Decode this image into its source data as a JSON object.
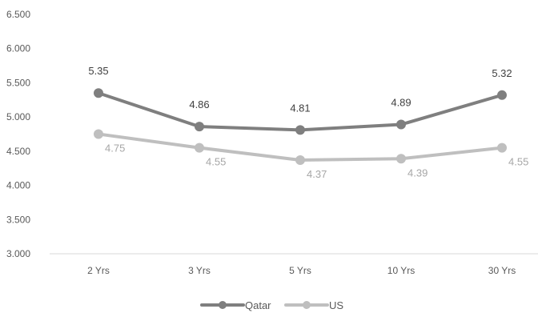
{
  "chart_data": {
    "type": "line",
    "title": "",
    "xlabel": "",
    "ylabel": "",
    "categories": [
      "2 Yrs",
      "3 Yrs",
      "5 Yrs",
      "10 Yrs",
      "30 Yrs"
    ],
    "ylim": [
      3.0,
      6.5
    ],
    "yticks": [
      3.0,
      3.5,
      4.0,
      4.5,
      5.0,
      5.5,
      6.0,
      6.5
    ],
    "ytick_labels": [
      "3.000",
      "3.500",
      "4.000",
      "4.500",
      "5.000",
      "5.500",
      "6.000",
      "6.500"
    ],
    "grid": false,
    "legend_position": "bottom",
    "series": [
      {
        "name": "Qatar",
        "color": "#7f7f7f",
        "values": [
          5.35,
          4.86,
          4.81,
          4.89,
          5.32
        ],
        "labels": [
          "5.35",
          "4.86",
          "4.81",
          "4.89",
          "5.32"
        ],
        "label_position": "above",
        "label_color": "#404040"
      },
      {
        "name": "US",
        "color": "#bfbfbf",
        "values": [
          4.75,
          4.55,
          4.37,
          4.39,
          4.55
        ],
        "labels": [
          "4.75",
          "4.55",
          "4.37",
          "4.39",
          "4.55"
        ],
        "label_position": "below-right",
        "label_color": "#a6a6a6"
      }
    ]
  }
}
